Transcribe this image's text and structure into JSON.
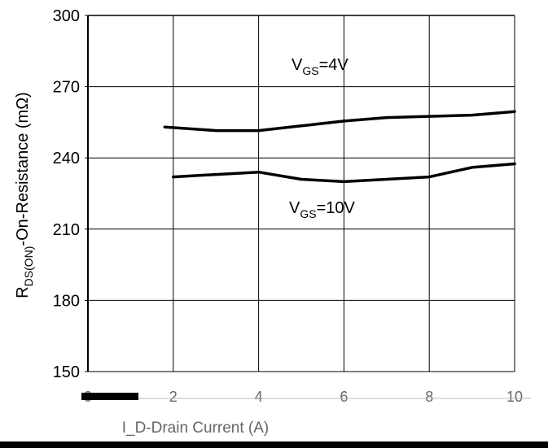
{
  "chart_data": {
    "type": "line",
    "title": "",
    "ylabel": "R",
    "ylabel_sub": "DS(ON)",
    "ylabel_rest": "-On-Resistance (mΩ)",
    "xlabel": "I_D-Drain Current (A)",
    "ylim": [
      150,
      300
    ],
    "xlim": [
      0,
      10
    ],
    "yticks": [
      "150",
      "180",
      "210",
      "240",
      "270",
      "300"
    ],
    "xticks": [
      "0",
      "2",
      "4",
      "6",
      "8",
      "10"
    ],
    "grid": true,
    "series": [
      {
        "name": "VGS=4V",
        "x": [
          1.8,
          3.0,
          4.0,
          5.0,
          6.0,
          7.0,
          8.0,
          9.0,
          10.0
        ],
        "y": [
          253,
          251.5,
          251.5,
          253.5,
          255.5,
          257,
          257.5,
          258,
          259.5
        ]
      },
      {
        "name": "VGS=10V",
        "x": [
          2.0,
          3.0,
          4.0,
          5.0,
          6.0,
          7.0,
          8.0,
          9.0,
          10.0
        ],
        "y": [
          232,
          233,
          234,
          231,
          230,
          231,
          232,
          236,
          237.5
        ]
      }
    ],
    "annotations": [
      {
        "main": "V",
        "sub": "GS",
        "rest": "=4V"
      },
      {
        "main": "V",
        "sub": "GS",
        "rest": "=10V"
      }
    ]
  }
}
